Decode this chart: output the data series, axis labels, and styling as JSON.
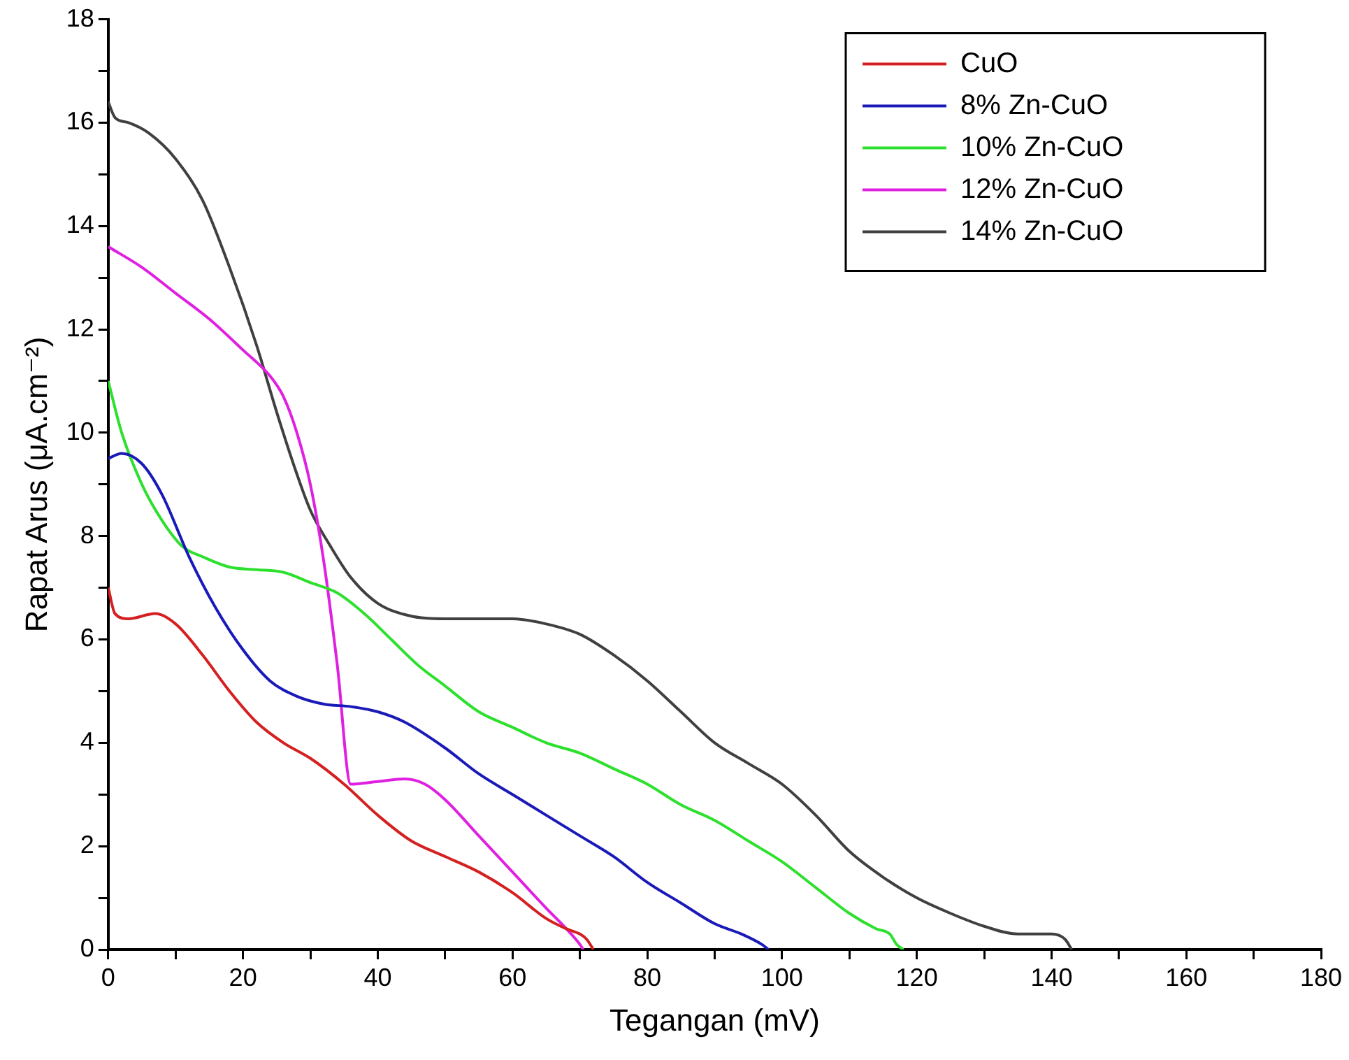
{
  "chart_data": {
    "type": "line",
    "xlabel": "Tegangan (mV)",
    "ylabel": "Rapat Arus (μA.cm⁻²)",
    "xlim": [
      0,
      180
    ],
    "ylim": [
      0,
      18
    ],
    "xticks": [
      0,
      {
        "value": 10,
        "label": null
      },
      20,
      {
        "value": 30,
        "label": null
      },
      40,
      {
        "value": 50,
        "label": null
      },
      60,
      {
        "value": 70,
        "label": null
      },
      80,
      {
        "value": 90,
        "label": null
      },
      100,
      {
        "value": 110,
        "label": null
      },
      120,
      {
        "value": 130,
        "label": null
      },
      140,
      {
        "value": 150,
        "label": null
      },
      160,
      {
        "value": 170,
        "label": null
      },
      180
    ],
    "yticks": [
      0,
      {
        "value": 1,
        "label": null
      },
      2,
      {
        "value": 3,
        "label": null
      },
      4,
      {
        "value": 5,
        "label": null
      },
      6,
      {
        "value": 7,
        "label": null
      },
      8,
      {
        "value": 9,
        "label": null
      },
      10,
      {
        "value": 11,
        "label": null
      },
      12,
      {
        "value": 13,
        "label": null
      },
      14,
      {
        "value": 15,
        "label": null
      },
      16,
      {
        "value": 17,
        "label": null
      },
      18
    ],
    "grid": false,
    "legend": "top right",
    "marker": "none",
    "line_style": "solid",
    "series": [
      {
        "name": "CuO",
        "color": "#d42020",
        "x": [
          0,
          1,
          3,
          7,
          10,
          14,
          18,
          22,
          26,
          30,
          35,
          40,
          45,
          50,
          55,
          60,
          65,
          68,
          70,
          71,
          72
        ],
        "values": [
          7.0,
          6.5,
          6.4,
          6.5,
          6.3,
          5.7,
          5.0,
          4.4,
          4.0,
          3.7,
          3.2,
          2.6,
          2.1,
          1.8,
          1.5,
          1.1,
          0.6,
          0.4,
          0.3,
          0.2,
          0
        ]
      },
      {
        "name": "8% Zn-CuO",
        "color": "#1a1ab8",
        "x": [
          0,
          2,
          5,
          8,
          12,
          16,
          20,
          24,
          28,
          32,
          36,
          40,
          44,
          50,
          55,
          60,
          65,
          70,
          75,
          80,
          85,
          90,
          94,
          97,
          98
        ],
        "values": [
          9.5,
          9.6,
          9.4,
          8.8,
          7.6,
          6.6,
          5.8,
          5.2,
          4.9,
          4.75,
          4.7,
          4.6,
          4.4,
          3.9,
          3.4,
          3.0,
          2.6,
          2.2,
          1.8,
          1.3,
          0.9,
          0.5,
          0.3,
          0.1,
          0
        ]
      },
      {
        "name": "10% Zn-CuO",
        "color": "#2ee02e",
        "x": [
          0,
          2,
          5,
          8,
          11,
          14,
          18,
          22,
          26,
          30,
          34,
          38,
          42,
          46,
          50,
          55,
          60,
          65,
          70,
          75,
          80,
          85,
          90,
          95,
          100,
          105,
          110,
          114,
          116,
          117,
          118
        ],
        "values": [
          11.0,
          10.0,
          9.0,
          8.3,
          7.8,
          7.6,
          7.4,
          7.35,
          7.3,
          7.1,
          6.9,
          6.5,
          6.0,
          5.5,
          5.1,
          4.6,
          4.3,
          4.0,
          3.8,
          3.5,
          3.2,
          2.8,
          2.5,
          2.1,
          1.7,
          1.2,
          0.7,
          0.4,
          0.3,
          0.1,
          0
        ]
      },
      {
        "name": "12% Zn-CuO",
        "color": "#e020e0",
        "x": [
          0,
          5,
          10,
          15,
          20,
          24,
          26,
          28,
          30,
          32,
          34,
          36,
          40,
          44,
          47,
          50,
          55,
          60,
          65,
          68,
          70,
          70.5
        ],
        "values": [
          13.6,
          13.2,
          12.7,
          12.2,
          11.6,
          11.1,
          10.7,
          10.0,
          9.0,
          7.5,
          5.5,
          3.2,
          3.25,
          3.3,
          3.2,
          2.9,
          2.2,
          1.5,
          0.8,
          0.4,
          0.1,
          0
        ]
      },
      {
        "name": "14% Zn-CuO",
        "color": "#404040",
        "x": [
          0,
          1,
          3,
          6,
          10,
          14,
          18,
          22,
          25,
          28,
          30,
          33,
          36,
          40,
          45,
          50,
          55,
          60,
          65,
          70,
          75,
          80,
          85,
          90,
          95,
          100,
          105,
          110,
          115,
          120,
          125,
          130,
          135,
          140,
          142,
          143
        ],
        "values": [
          16.4,
          16.1,
          16.0,
          15.8,
          15.3,
          14.5,
          13.2,
          11.7,
          10.4,
          9.2,
          8.5,
          7.8,
          7.2,
          6.7,
          6.45,
          6.4,
          6.4,
          6.4,
          6.3,
          6.1,
          5.7,
          5.2,
          4.6,
          4.0,
          3.6,
          3.2,
          2.6,
          1.9,
          1.4,
          1.0,
          0.7,
          0.45,
          0.3,
          0.3,
          0.2,
          0
        ]
      }
    ]
  }
}
